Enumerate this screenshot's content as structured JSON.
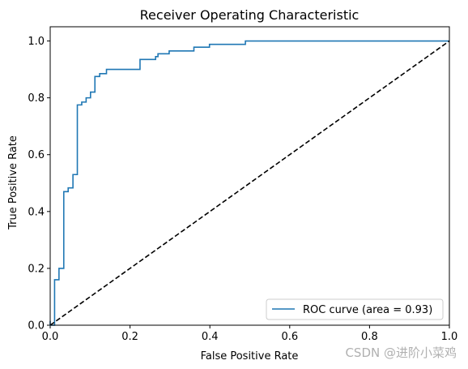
{
  "chart_data": {
    "type": "line",
    "title": "Receiver Operating Characteristic",
    "xlabel": "False Positive Rate",
    "ylabel": "True Positive Rate",
    "xlim": [
      0.0,
      1.0
    ],
    "ylim": [
      0.0,
      1.05
    ],
    "xticks": [
      "0.0",
      "0.2",
      "0.4",
      "0.6",
      "0.8",
      "1.0"
    ],
    "yticks": [
      "0.0",
      "0.2",
      "0.4",
      "0.6",
      "0.8",
      "1.0"
    ],
    "legend": {
      "placement": "lower-right",
      "entries": [
        "ROC curve (area = 0.93)"
      ]
    },
    "series": [
      {
        "name": "ROC curve (area = 0.93)",
        "color": "#1f77b4",
        "style": "solid",
        "x": [
          0.0,
          0.0,
          0.0,
          0.011,
          0.011,
          0.022,
          0.022,
          0.034,
          0.034,
          0.045,
          0.045,
          0.057,
          0.057,
          0.068,
          0.068,
          0.079,
          0.079,
          0.09,
          0.09,
          0.101,
          0.101,
          0.112,
          0.112,
          0.124,
          0.124,
          0.141,
          0.141,
          0.225,
          0.225,
          0.264,
          0.264,
          0.27,
          0.27,
          0.298,
          0.298,
          0.36,
          0.36,
          0.399,
          0.399,
          0.489,
          0.489,
          1.0
        ],
        "y": [
          0.0,
          0.015,
          0.0,
          0.0,
          0.16,
          0.16,
          0.2,
          0.2,
          0.47,
          0.47,
          0.483,
          0.483,
          0.53,
          0.53,
          0.775,
          0.775,
          0.785,
          0.785,
          0.8,
          0.8,
          0.82,
          0.82,
          0.875,
          0.875,
          0.885,
          0.885,
          0.9,
          0.9,
          0.935,
          0.935,
          0.945,
          0.945,
          0.955,
          0.955,
          0.965,
          0.965,
          0.978,
          0.978,
          0.988,
          0.988,
          1.0,
          1.0
        ]
      },
      {
        "name": "",
        "color": "#000000",
        "style": "dashed",
        "x": [
          0.0,
          1.0
        ],
        "y": [
          0.0,
          1.0
        ]
      }
    ]
  },
  "watermark": "CSDN @进阶小菜鸡"
}
